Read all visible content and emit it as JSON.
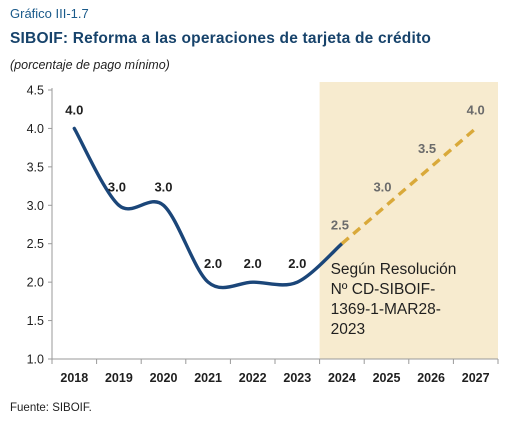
{
  "header": {
    "figure_label": "Gráfico III-1.7",
    "title": "SIBOIF: Reforma a las operaciones de tarjeta de crédito",
    "subtitle": "(porcentaje de pago mínimo)"
  },
  "footer": {
    "source": "Fuente: SIBOIF."
  },
  "chart_data": {
    "type": "line",
    "title": "SIBOIF: Reforma a las operaciones de tarjeta de crédito",
    "ylabel": "",
    "xlabel": "",
    "categories": [
      "2018",
      "2019",
      "2020",
      "2021",
      "2022",
      "2023",
      "2024",
      "2025",
      "2026",
      "2027"
    ],
    "ylim": [
      1.0,
      4.5
    ],
    "yticks": [
      "1.0",
      "1.5",
      "2.0",
      "2.5",
      "3.0",
      "3.5",
      "4.0",
      "4.5"
    ],
    "grid": false,
    "series": [
      {
        "values": [
          4.0,
          3.0,
          3.0,
          2.0,
          2.0,
          2.0,
          2.5,
          3.0,
          3.5,
          4.0
        ],
        "labels": [
          "4.0",
          "3.0",
          "3.0",
          "2.0",
          "2.0",
          "2.0",
          "2.5",
          "3.0",
          "3.5",
          "4.0"
        ],
        "solid_until_index": 6,
        "color": "#1b4679",
        "forecast_color": "#d9a93a"
      }
    ],
    "shaded_region": {
      "from_category": "2024",
      "to_category": "2027",
      "color": "#f7ebcf",
      "annotation_lines": [
        "Según Resolución",
        "Nº CD-SIBOIF-",
        "1369-1-MAR28-",
        "2023"
      ]
    }
  }
}
